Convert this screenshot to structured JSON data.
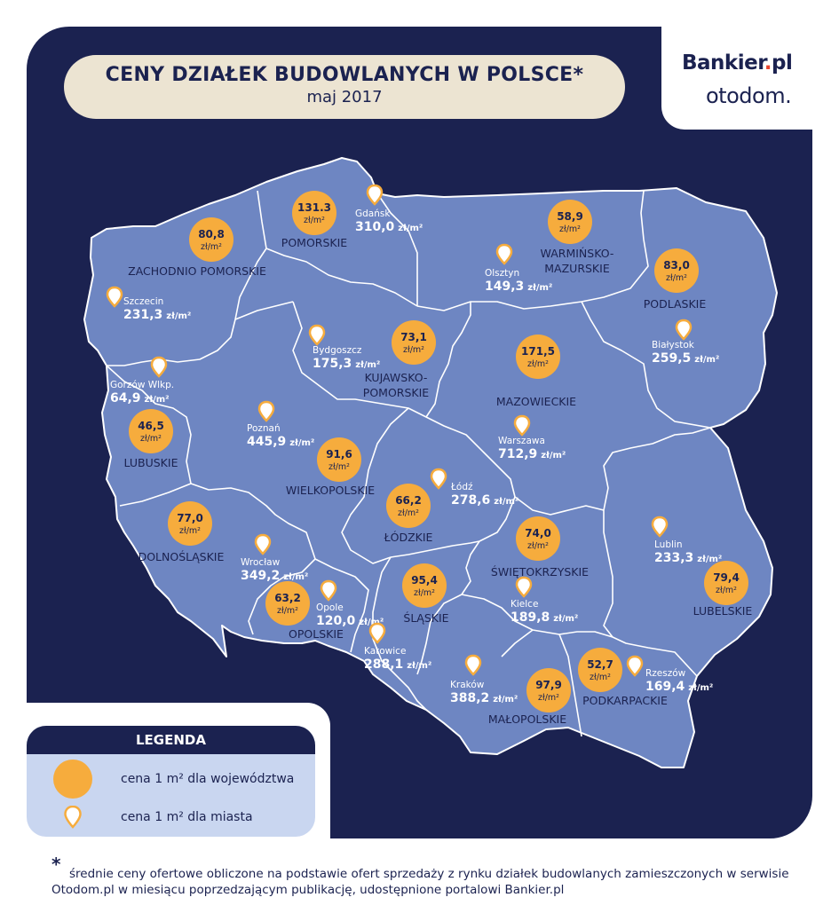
{
  "title": "CENY DZIAŁEK BUDOWLANYCH W POLSCE*",
  "subtitle": "maj 2017",
  "brand": {
    "name_main": "Bankier",
    "name_dot": ".",
    "name_tld": "pl",
    "name2": "otodom."
  },
  "colors": {
    "background": "#1b2250",
    "land": "#6e86c2",
    "bubble": "#f6ac3d",
    "title_box": "#ece4d2",
    "legend_bg": "#c9d6f0"
  },
  "icons": {
    "voivodeship": "orange-circle",
    "city": "map-pin-icon"
  },
  "unit_bubble": "zł/m²",
  "unit_city": "zł/m²",
  "voivodeships": [
    {
      "name": "ZACHODNIO POMORSKIE",
      "value": "80,8"
    },
    {
      "name": "POMORSKIE",
      "value": "131.3"
    },
    {
      "name": "WARMIŃSKO-",
      "name2": "MAZURSKIE",
      "value": "58,9"
    },
    {
      "name": "PODLASKIE",
      "value": "83,0"
    },
    {
      "name": "KUJAWSKO-",
      "name2": "POMORSKIE",
      "value": "73,1"
    },
    {
      "name": "MAZOWIECKIE",
      "value": "171,5"
    },
    {
      "name": "LUBUSKIE",
      "value": "46,5"
    },
    {
      "name": "WIELKOPOLSKIE",
      "value": "91,6"
    },
    {
      "name": "ŁÓDZKIE",
      "value": "66,2"
    },
    {
      "name": "DOLNOŚLĄSKIE",
      "value": "77,0"
    },
    {
      "name": "OPOLSKIE",
      "value": "63,2"
    },
    {
      "name": "ŚLĄSKIE",
      "value": "95,4"
    },
    {
      "name": "ŚWIĘTOKRZYSKIE",
      "value": "74,0"
    },
    {
      "name": "LUBELSKIE",
      "value": "79,4"
    },
    {
      "name": "MAŁOPOLSKIE",
      "value": "97,9"
    },
    {
      "name": "PODKARPACKIE",
      "value": "52,7"
    }
  ],
  "cities": [
    {
      "name": "Gdańsk",
      "value": "310,0"
    },
    {
      "name": "Szczecin",
      "value": "231,3"
    },
    {
      "name": "Olsztyn",
      "value": "149,3"
    },
    {
      "name": "Białystok",
      "value": "259,5"
    },
    {
      "name": "Bydgoszcz",
      "value": "175,3"
    },
    {
      "name": "Gorzów Wlkp.",
      "value": "64,9"
    },
    {
      "name": "Poznań",
      "value": "445,9"
    },
    {
      "name": "Warszawa",
      "value": "712,9"
    },
    {
      "name": "Łódź",
      "value": "278,6"
    },
    {
      "name": "Wrocław",
      "value": "349,2"
    },
    {
      "name": "Opole",
      "value": "120,0"
    },
    {
      "name": "Katowice",
      "value": "288,1"
    },
    {
      "name": "Kielce",
      "value": "189,8"
    },
    {
      "name": "Lublin",
      "value": "233,3"
    },
    {
      "name": "Kraków",
      "value": "388,2"
    },
    {
      "name": "Rzeszów",
      "value": "169,4"
    }
  ],
  "legend": {
    "title": "LEGENDA",
    "voivodeship_label": "cena 1 m² dla województwa",
    "city_label": "cena 1 m² dla miasta"
  },
  "footnote": {
    "star": "*",
    "line1": "średnie ceny ofertowe obliczone na podstawie ofert sprzedaży z rynku działek budowlanych zamieszczonych w serwisie",
    "line2": "Otodom.pl w miesiącu poprzedzającym publikację, udostępnione portalowi Bankier.pl"
  }
}
